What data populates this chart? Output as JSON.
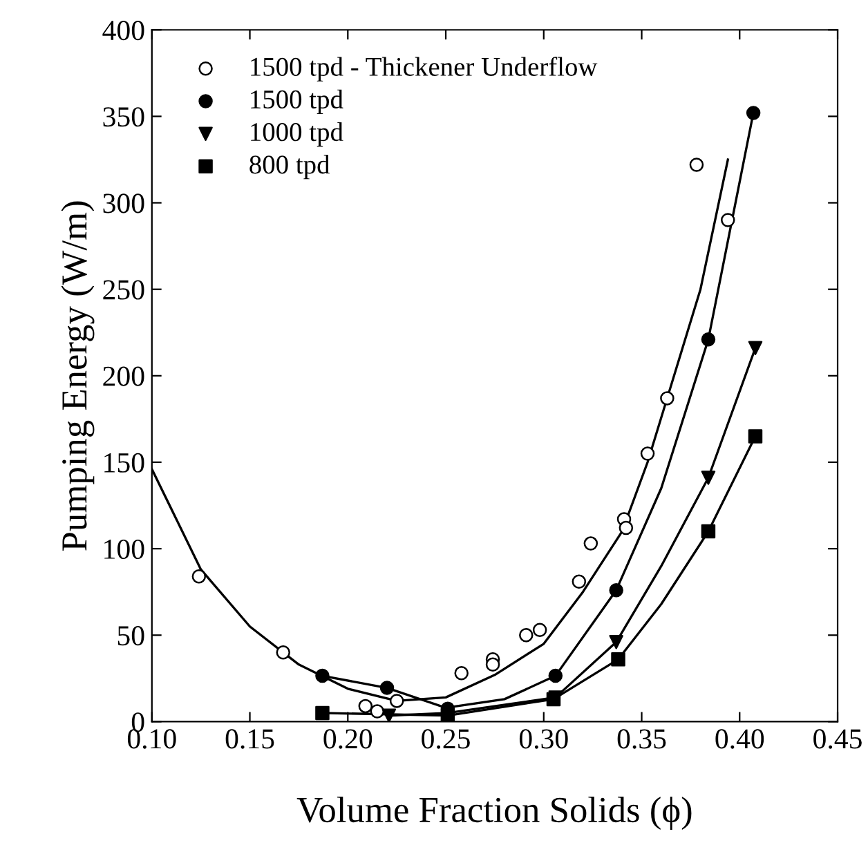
{
  "chart_data": {
    "type": "scatter",
    "xlabel": "Volume Fraction Solids (ϕ)",
    "ylabel": "Pumping Energy (W/m)",
    "xlim": [
      0.1,
      0.45
    ],
    "ylim": [
      0,
      400
    ],
    "xticks": [
      {
        "value": 0.1,
        "label": "0.10"
      },
      0.15,
      {
        "value": 0.2,
        "label": "0.20"
      },
      0.25,
      {
        "value": 0.3,
        "label": "0.30"
      },
      0.35,
      {
        "value": 0.4,
        "label": "0.40"
      },
      0.45
    ],
    "yticks": [
      0,
      50,
      100,
      150,
      200,
      250,
      300,
      350,
      400
    ],
    "grid": false,
    "legend": "top left",
    "series": [
      {
        "name": "1500 tpd - Thickener Underflow",
        "marker": "circle",
        "color": "#ffffff",
        "x": [
          0.124,
          0.167,
          0.209,
          0.215,
          0.225,
          0.258,
          0.274,
          0.274,
          0.291,
          0.298,
          0.318,
          0.324,
          0.341,
          0.342,
          0.353,
          0.363,
          0.378,
          0.394
        ],
        "values": [
          84,
          40,
          9,
          6,
          12,
          28,
          36,
          33,
          50,
          53,
          81,
          103,
          117,
          112,
          155,
          187,
          322,
          290
        ]
      },
      {
        "name": "1500 tpd",
        "marker": "circle",
        "color": "#000000",
        "x": [
          0.187,
          0.22,
          0.251,
          0.306,
          0.337,
          0.384,
          0.407
        ],
        "values": [
          26.5,
          19.5,
          7.5,
          26.5,
          76,
          221,
          352
        ]
      },
      {
        "name": "1000 tpd",
        "marker": "triangle",
        "color": "#000000",
        "x": [
          0.221,
          0.251,
          0.306,
          0.337,
          0.384,
          0.408
        ],
        "values": [
          3.5,
          null,
          14,
          46,
          141,
          216
        ]
      },
      {
        "name": "800 tpd",
        "marker": "square",
        "color": "#000000",
        "x": [
          0.187,
          0.251,
          0.305,
          0.338,
          0.384,
          0.408
        ],
        "values": [
          5,
          3.5,
          13,
          36,
          110,
          165
        ]
      },
      {
        "type": "line",
        "color": "#000000",
        "x": [
          0.1,
          0.125,
          0.15,
          0.175,
          0.2,
          0.225,
          0.25,
          0.275,
          0.3,
          0.32,
          0.34,
          0.353,
          0.363,
          0.38,
          0.394
        ],
        "values": [
          146,
          88,
          55,
          33,
          19,
          12,
          14,
          27,
          45,
          75,
          110,
          150,
          187,
          250,
          325
        ]
      },
      {
        "type": "line",
        "color": "#000000",
        "x": [
          0.187,
          0.22,
          0.25,
          0.28,
          0.306,
          0.337,
          0.36,
          0.384,
          0.407
        ],
        "values": [
          26.5,
          19.5,
          8,
          13,
          26.5,
          76,
          135,
          221,
          352
        ]
      },
      {
        "type": "line",
        "color": "#000000",
        "x": [
          0.221,
          0.251,
          0.306,
          0.337,
          0.36,
          0.384,
          0.408
        ],
        "values": [
          3.5,
          5,
          14,
          46,
          90,
          141,
          216
        ]
      },
      {
        "type": "line",
        "color": "#000000",
        "x": [
          0.187,
          0.251,
          0.305,
          0.338,
          0.36,
          0.384,
          0.408
        ],
        "values": [
          5,
          3.5,
          13,
          36,
          68,
          110,
          165
        ]
      }
    ]
  }
}
